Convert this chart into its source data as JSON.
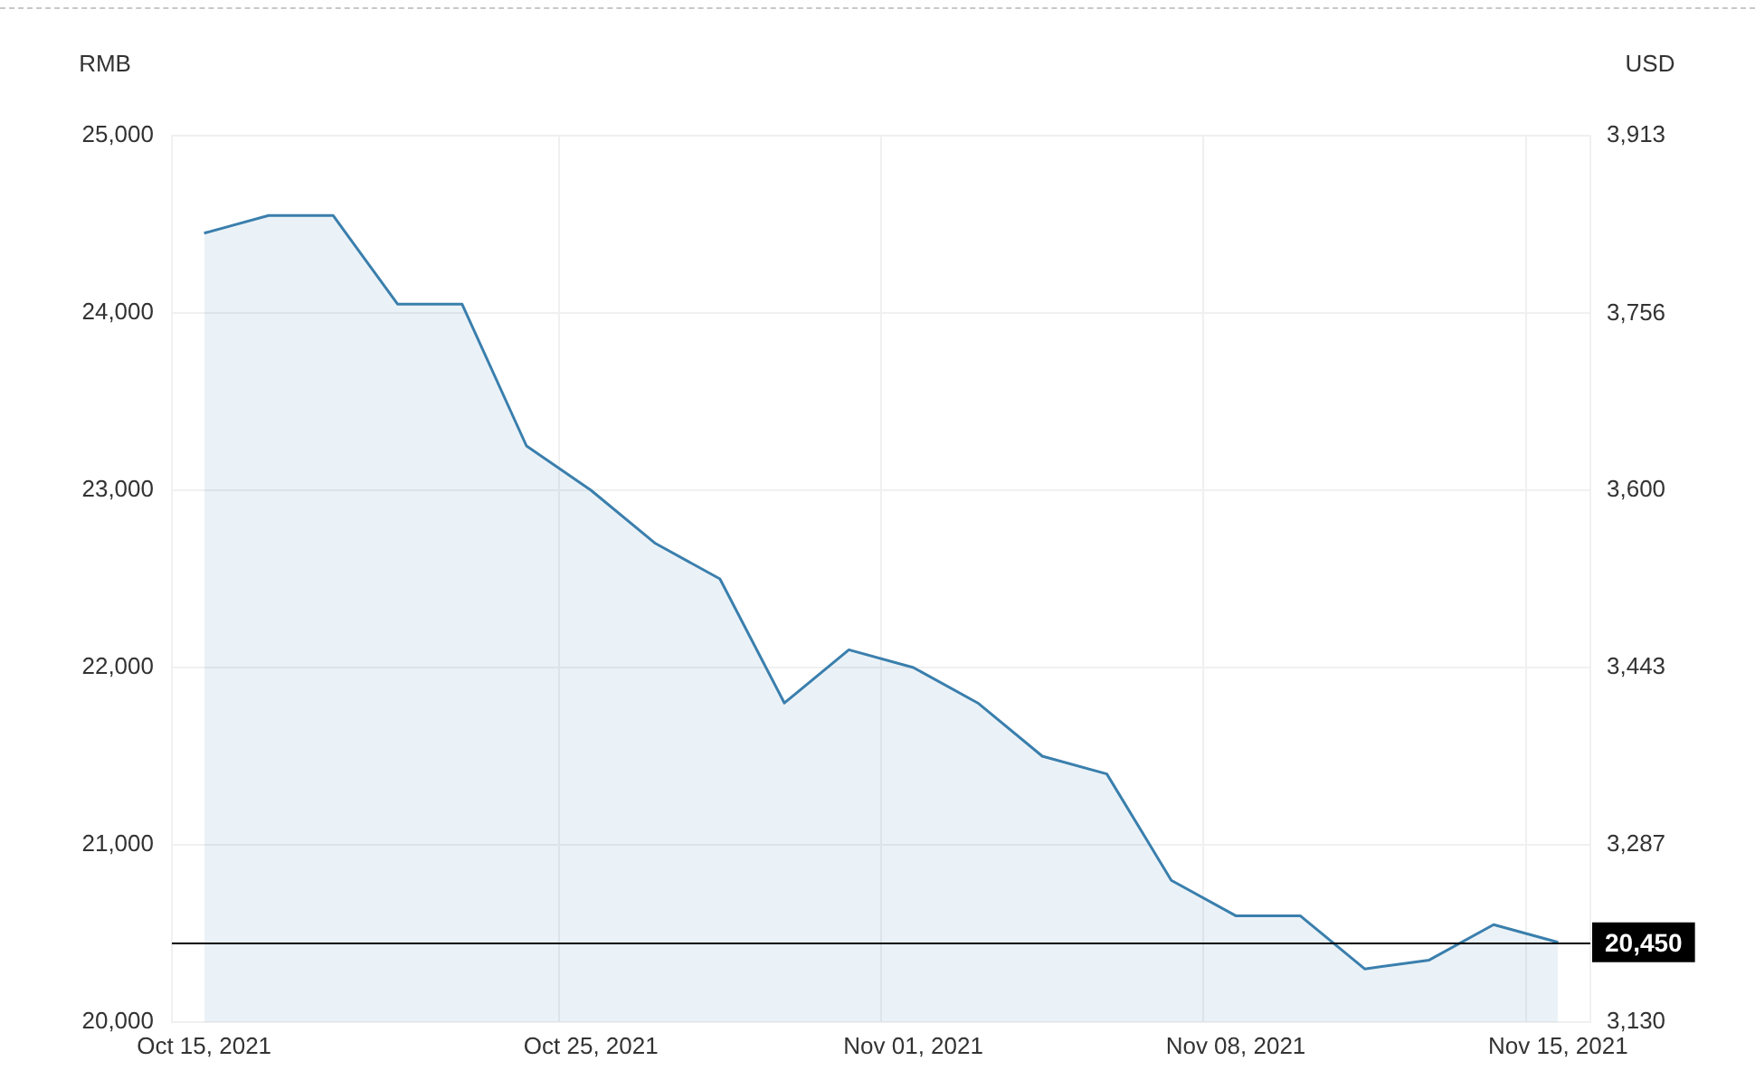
{
  "chart_data": {
    "type": "area",
    "ylabel": "RMB",
    "y2label": "USD",
    "categories": [
      "Oct 15, 2021",
      null,
      null,
      null,
      null,
      null,
      "Oct 25, 2021",
      null,
      null,
      null,
      null,
      "Nov 01, 2021",
      null,
      null,
      null,
      null,
      "Nov 08, 2021",
      null,
      null,
      null,
      null,
      "Nov 15, 2021"
    ],
    "values": [
      24450,
      24550,
      24550,
      24050,
      24050,
      23250,
      23000,
      22700,
      22500,
      21800,
      22100,
      22000,
      21800,
      21500,
      21400,
      20800,
      20600,
      20600,
      20300,
      20350,
      20550,
      20450
    ],
    "color": "#3a7fad",
    "ylim": [
      20000,
      25000
    ],
    "yticks": [
      {
        "value": 20000,
        "label": "20,000"
      },
      {
        "value": 21000,
        "label": "21,000"
      },
      {
        "value": 22000,
        "label": "22,000"
      },
      {
        "value": 23000,
        "label": "23,000"
      },
      {
        "value": 24000,
        "label": "24,000"
      },
      {
        "value": 25000,
        "label": "25,000"
      }
    ],
    "y2lim": [
      3130,
      3913
    ],
    "y2ticks": [
      {
        "value": 3130,
        "label": "3,130"
      },
      {
        "value": 3287,
        "label": "3,287"
      },
      {
        "value": 3443,
        "label": "3,443"
      },
      {
        "value": 3600,
        "label": "3,600"
      },
      {
        "value": 3756,
        "label": "3,756"
      },
      {
        "value": 3913,
        "label": "3,913"
      }
    ],
    "ref_lines": [
      {
        "axis": "y",
        "value": 20450,
        "label": "20,450",
        "color": "#000000"
      }
    ],
    "grid": true
  }
}
